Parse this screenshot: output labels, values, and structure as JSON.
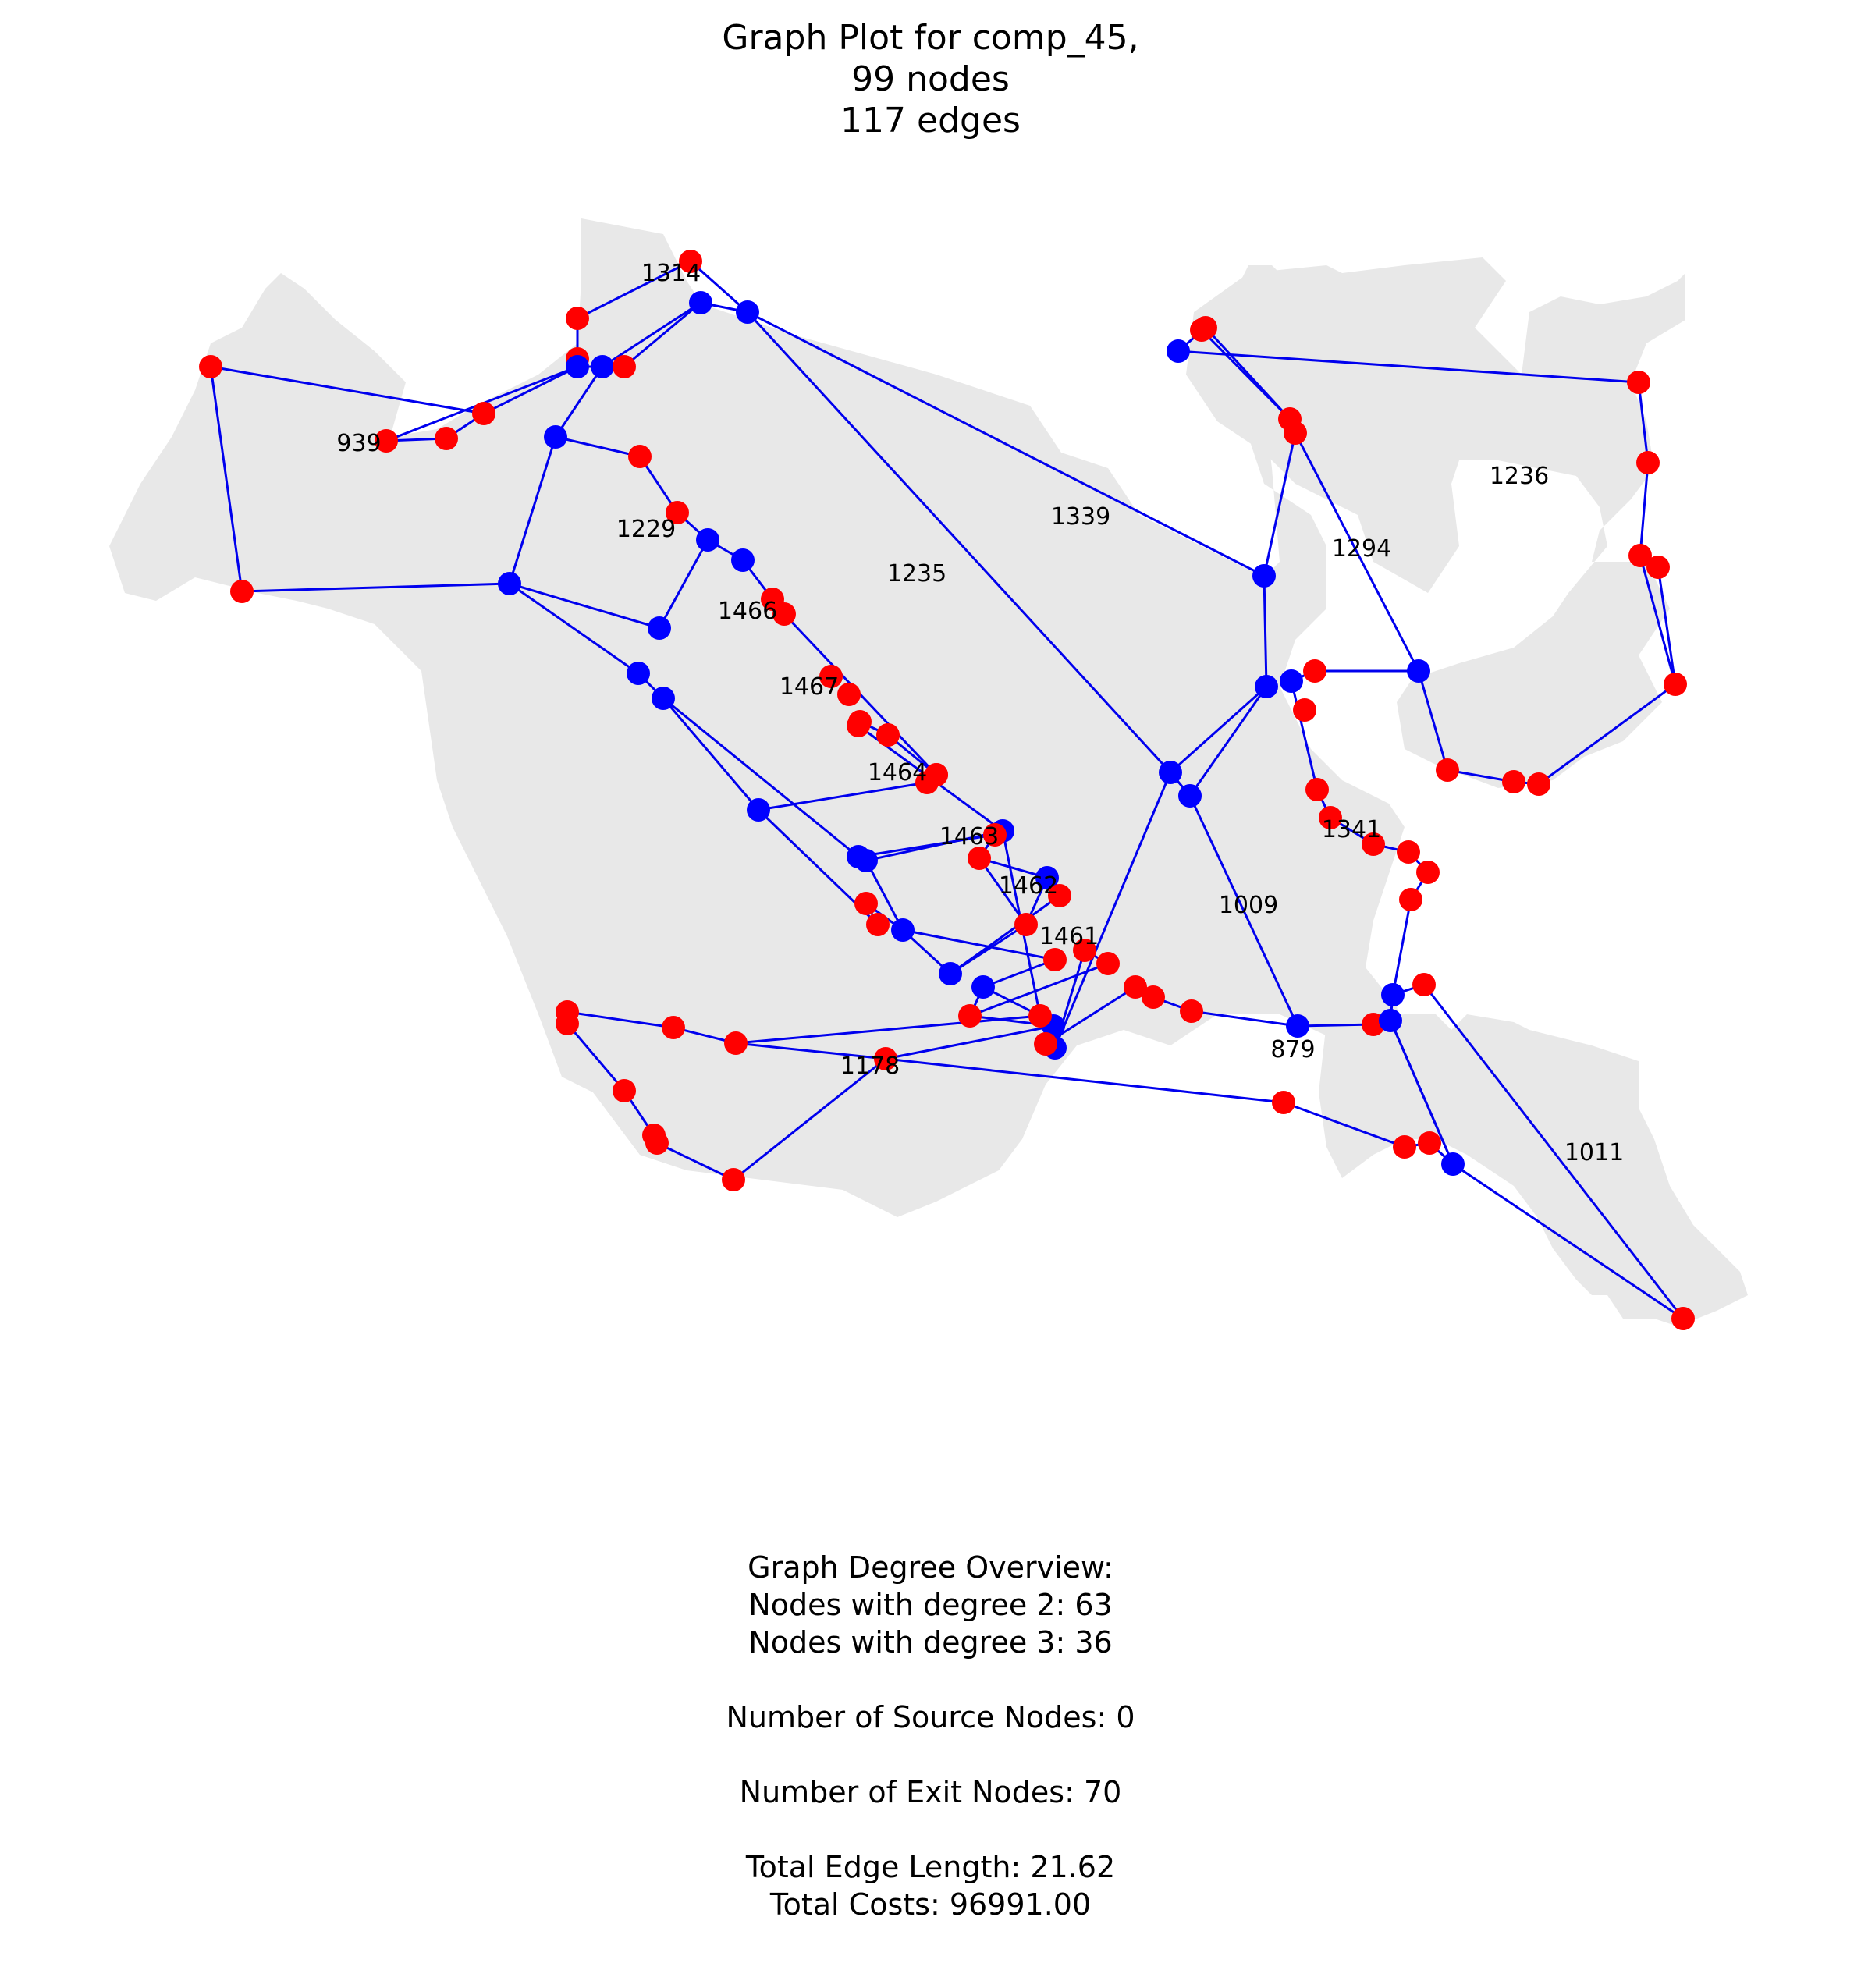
{
  "title": {
    "line1": "Graph Plot for comp_45,",
    "line2": "99 nodes",
    "line3": "117 edges"
  },
  "colors": {
    "background": "#ffffff",
    "region_fill": "#e8e8e8",
    "edge": "#0000ee",
    "exit_node": "#ff0000",
    "junction_node": "#0000ff"
  },
  "legend_meaning": {
    "exit_node": "red",
    "junction_node": "blue"
  },
  "region_labels": [
    "1314",
    "939",
    "1229",
    "1235",
    "1339",
    "1294",
    "1236",
    "1466",
    "1467",
    "1464",
    "1463",
    "1462",
    "1461",
    "1341",
    "1009",
    "879",
    "1178",
    "1011"
  ],
  "stats": {
    "heading": "Graph Degree Overview:",
    "degree2": "Nodes with degree 2: 63",
    "degree3": "Nodes with degree 3: 36",
    "sources": "Number of Source Nodes: 0",
    "exits": "Number of Exit Nodes: 70",
    "length": "Total Edge Length: 21.62",
    "costs": "Total Costs: 96991.00"
  }
}
